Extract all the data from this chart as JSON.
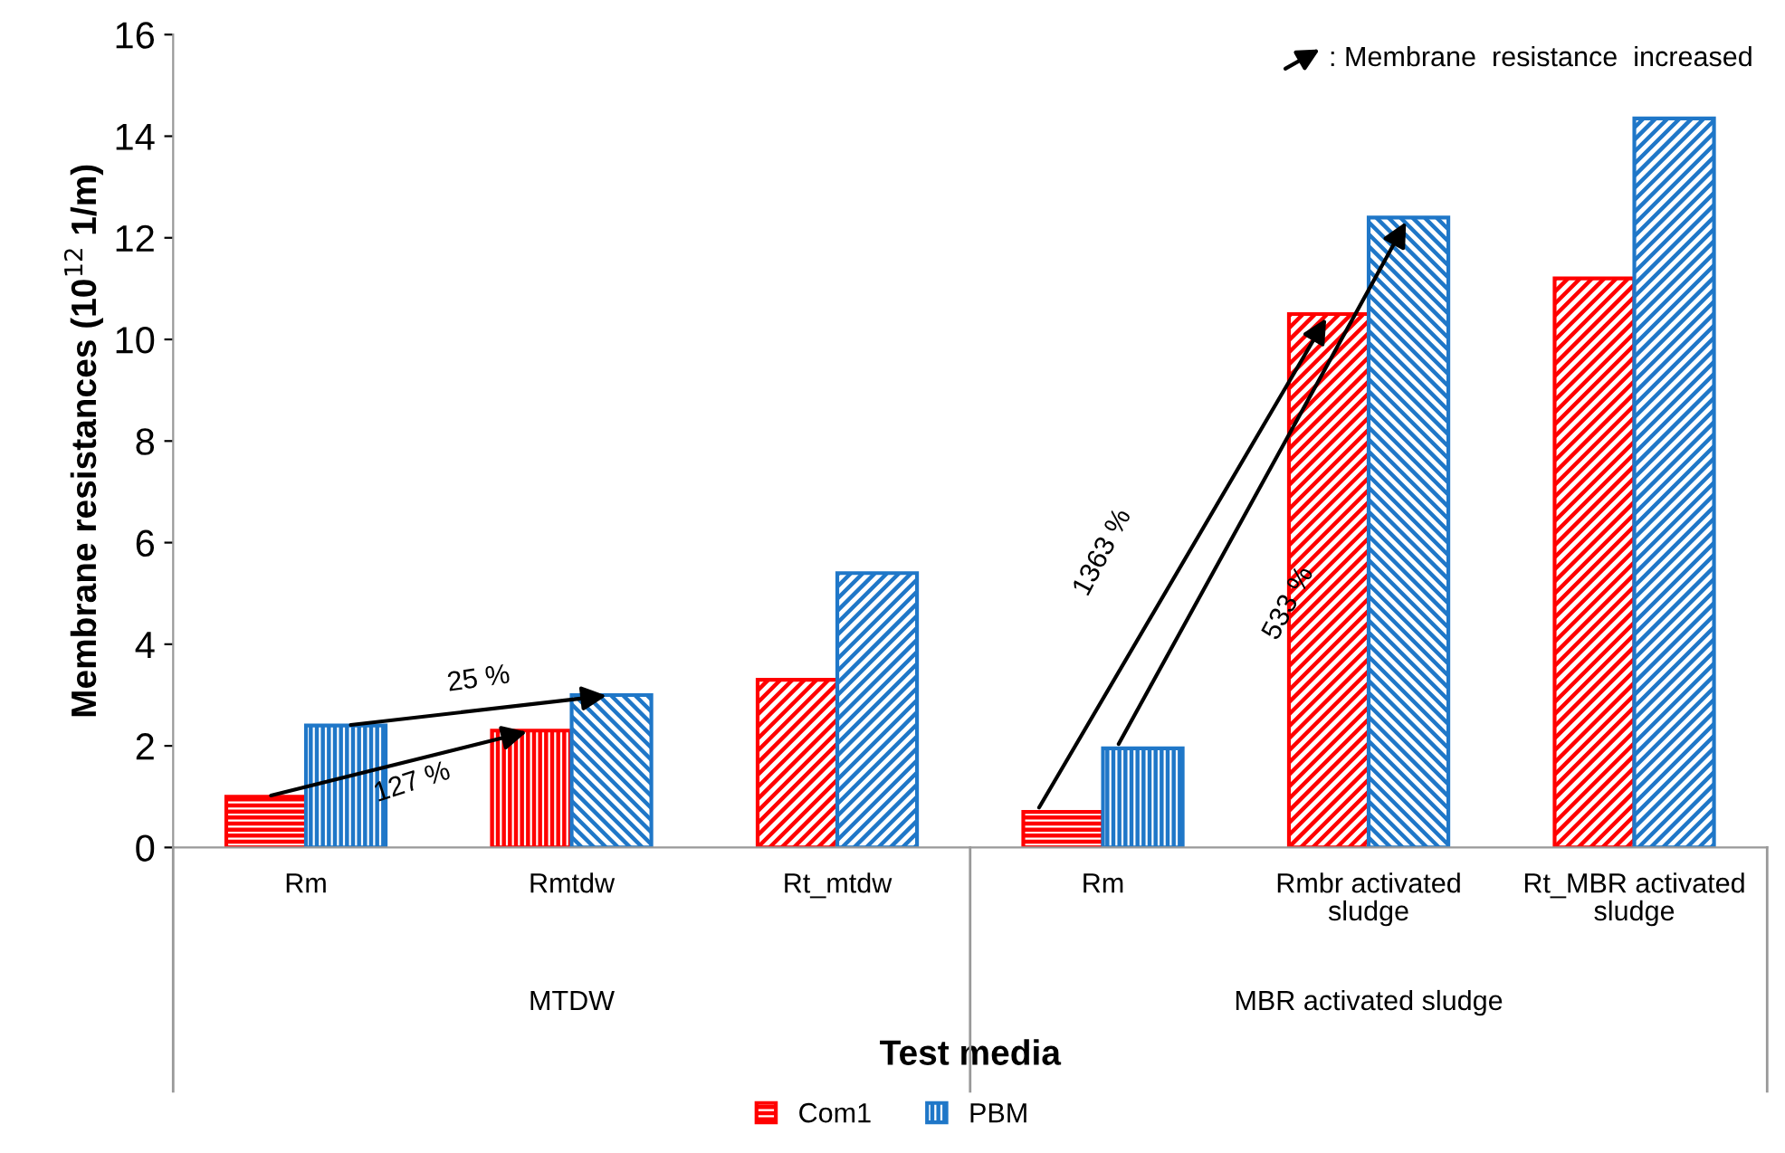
{
  "chart_data": {
    "type": "bar",
    "xlabel": "Test media",
    "ylabel": "Membrane resistances (10$^{12}$ 1/m)",
    "categories": [
      "Rm",
      "Rmtdw",
      "Rt_mtdw",
      "Rm",
      "Rmbr activated sludge",
      "Rt_MBR activated sludge"
    ],
    "series": [
      {
        "name": "Com1",
        "color": "#ff0000",
        "values": [
          1.0,
          2.3,
          3.3,
          0.7,
          10.5,
          11.2
        ]
      },
      {
        "name": "PBM",
        "color": "#1f77c8",
        "values": [
          2.4,
          3.0,
          5.4,
          1.95,
          12.4,
          14.35
        ]
      }
    ],
    "ylim": [
      0,
      16
    ],
    "yticks": [
      0,
      2,
      4,
      6,
      8,
      10,
      12,
      14,
      16
    ],
    "grid": false,
    "legend": "bottom",
    "annotations": [
      "MTDW",
      "MBR activated sludge",
      ": Membrane  resistance  increased",
      "127 %",
      "25 %",
      "1363 %",
      "533 %"
    ]
  }
}
